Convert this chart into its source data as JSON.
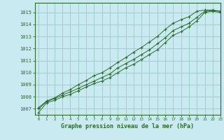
{
  "xlabel": "Graphe pression niveau de la mer (hPa)",
  "xlim": [
    -0.5,
    23
  ],
  "ylim": [
    1006.5,
    1015.8
  ],
  "yticks": [
    1007,
    1008,
    1009,
    1010,
    1011,
    1012,
    1013,
    1014,
    1015
  ],
  "xticks": [
    0,
    1,
    2,
    3,
    4,
    5,
    6,
    7,
    8,
    9,
    10,
    11,
    12,
    13,
    14,
    15,
    16,
    17,
    18,
    19,
    20,
    21,
    22,
    23
  ],
  "background_color": "#c8eaf0",
  "grid_color": "#a0c8c8",
  "line_color": "#2d6a2d",
  "axis_color": "#2d6a2d",
  "x": [
    0,
    1,
    2,
    3,
    4,
    5,
    6,
    7,
    8,
    9,
    10,
    11,
    12,
    13,
    14,
    15,
    16,
    17,
    18,
    19,
    20,
    21,
    22,
    23
  ],
  "y_low": [
    1006.7,
    1007.5,
    1007.7,
    1008.0,
    1008.2,
    1008.5,
    1008.8,
    1009.1,
    1009.3,
    1009.6,
    1010.0,
    1010.4,
    1010.7,
    1011.1,
    1011.5,
    1011.9,
    1012.5,
    1013.1,
    1013.4,
    1013.8,
    1014.3,
    1015.0,
    1015.1,
    1015.0
  ],
  "y_mid": [
    1007.0,
    1007.6,
    1007.85,
    1008.15,
    1008.4,
    1008.7,
    1009.0,
    1009.3,
    1009.6,
    1009.9,
    1010.4,
    1010.75,
    1011.1,
    1011.5,
    1011.9,
    1012.4,
    1012.9,
    1013.5,
    1013.8,
    1014.1,
    1014.6,
    1015.1,
    1015.15,
    1015.1
  ],
  "y_high": [
    1007.1,
    1007.65,
    1007.9,
    1008.3,
    1008.6,
    1009.0,
    1009.35,
    1009.75,
    1010.0,
    1010.4,
    1010.85,
    1011.25,
    1011.7,
    1012.1,
    1012.55,
    1013.0,
    1013.6,
    1014.1,
    1014.4,
    1014.65,
    1015.1,
    1015.2,
    1015.2,
    1015.1
  ]
}
